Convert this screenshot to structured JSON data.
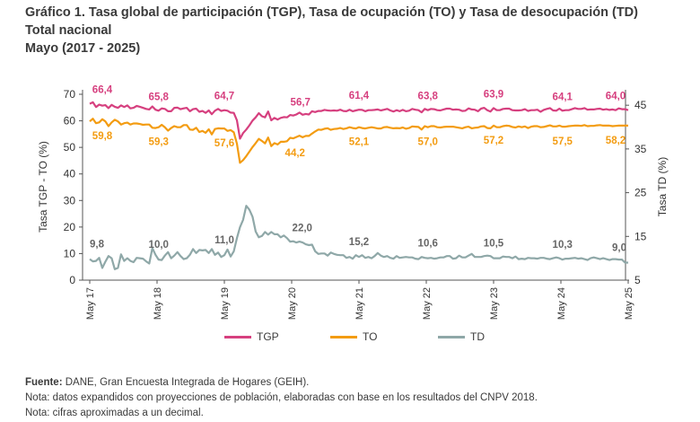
{
  "title": {
    "line1": "Gráfico 1. Tasa global de participación (TGP), Tasa de ocupación (TO) y Tasa de desocupación (TD)",
    "line2": "Total nacional",
    "line3": "Mayo (2017 - 2025)"
  },
  "notes": {
    "source_label": "Fuente:",
    "source_text": " DANE, Gran Encuesta Integrada de Hogares (GEIH).",
    "note1": "Nota: datos expandidos con proyecciones de población, elaboradas con base en los resultados del CNPV 2018.",
    "note2": "Nota: cifras aproximadas a un decimal."
  },
  "colors": {
    "TGP": "#d6407f",
    "TO": "#f39c12",
    "TD": "#8fa8a8"
  },
  "chart_data": {
    "type": "line",
    "x_ticks": [
      "May 17",
      "May 18",
      "May 19",
      "May 20",
      "May 21",
      "May 22",
      "May 23",
      "May 24",
      "May 25"
    ],
    "ylabel": "Tasa TGP - TO (%)",
    "y2label": "Tasa TD (%)",
    "ylim": [
      0,
      70
    ],
    "y_ticks": [
      0,
      10,
      20,
      30,
      40,
      50,
      60,
      70
    ],
    "y2lim": [
      5,
      47.5
    ],
    "y2_ticks": [
      5,
      15,
      25,
      35,
      45
    ],
    "legend_position": "bottom",
    "series": [
      {
        "name": "TGP",
        "axis": "left",
        "values": [
          66.4,
          67.0,
          65.2,
          66.1,
          65.7,
          65.9,
          64.8,
          66.0,
          65.3,
          64.9,
          65.8,
          65.2,
          65.8,
          64.7,
          64.9,
          65.6,
          65.3,
          64.9,
          64.5,
          64.3,
          65.4,
          64.2,
          63.8,
          64.7,
          64.5,
          63.6,
          63.6,
          64.9,
          65.0,
          64.4,
          64.7,
          64.9,
          63.6,
          64.4,
          64.6,
          63.4,
          63.7,
          63.0,
          63.9,
          62.5,
          63.8,
          64.5,
          63.7,
          64.0,
          63.8,
          63.1,
          63.0,
          60.2,
          53.3,
          55.4,
          56.7,
          58.3,
          60.1,
          61.3,
          62.9,
          61.7,
          61.3,
          63.5,
          60.2,
          61.1,
          60.5,
          61.1,
          61.4,
          61.3,
          62.2,
          62.0,
          62.4,
          63.1,
          62.3,
          62.6,
          62.4,
          63.6,
          63.3,
          63.7,
          63.7,
          64.1,
          63.9,
          63.8,
          63.9,
          63.8,
          64.2,
          63.7,
          63.6,
          64.2,
          63.6,
          63.9,
          64.2,
          64.1,
          63.6,
          64.0,
          64.0,
          64.1,
          64.3,
          63.9,
          64.2,
          64.5,
          63.9,
          63.5,
          64.0,
          63.6,
          64.1,
          63.6,
          63.8,
          64.5,
          64.2,
          64.0,
          63.2,
          64.5,
          64.0,
          64.5,
          64.4,
          64.0,
          63.9,
          64.3,
          64.6,
          64.6,
          64.2,
          64.3,
          64.2,
          63.7,
          63.8,
          64.7,
          64.3,
          64.2,
          63.6,
          64.6,
          64.9,
          64.0,
          63.5,
          64.8,
          64.0,
          64.0,
          64.5,
          64.6,
          64.6,
          64.0,
          63.9,
          63.9,
          64.0,
          64.4,
          63.7,
          64.0,
          64.0,
          64.2,
          63.4,
          64.1,
          64.5,
          64.8,
          63.9,
          63.8,
          64.6,
          63.8,
          64.0,
          64.0,
          64.4,
          64.8,
          64.5,
          64.5,
          64.8,
          64.2,
          64.3,
          64.3,
          64.5,
          64.6,
          64.2,
          64.4,
          64.1,
          64.3,
          64.0,
          64.7,
          64.4,
          64.4,
          64.0
        ]
      },
      {
        "name": "TO",
        "axis": "left",
        "values": [
          59.8,
          60.8,
          59.1,
          59.4,
          60.6,
          59.8,
          58.0,
          59.4,
          60.4,
          59.8,
          58.6,
          59.1,
          59.3,
          58.6,
          59.0,
          59.0,
          58.8,
          58.5,
          58.6,
          58.6,
          57.4,
          57.3,
          57.6,
          58.5,
          57.6,
          56.3,
          57.3,
          58.0,
          57.6,
          57.6,
          58.4,
          58.4,
          56.7,
          56.6,
          57.4,
          55.8,
          56.2,
          55.5,
          56.8,
          54.9,
          56.9,
          57.2,
          57.1,
          57.1,
          56.2,
          56.5,
          55.7,
          51.4,
          44.2,
          45.2,
          46.7,
          48.4,
          50.1,
          51.6,
          53.2,
          52.4,
          51.5,
          53.7,
          50.5,
          51.6,
          51.1,
          52.1,
          52.1,
          52.3,
          53.6,
          53.4,
          53.9,
          54.4,
          53.8,
          54.3,
          54.3,
          55.2,
          56.0,
          56.7,
          56.6,
          57.0,
          57.2,
          56.6,
          56.9,
          57.0,
          57.3,
          56.9,
          57.2,
          57.6,
          57.3,
          57.1,
          57.6,
          57.3,
          57.1,
          57.4,
          57.6,
          57.4,
          57.1,
          57.1,
          57.6,
          57.7,
          57.4,
          57.2,
          57.3,
          57.2,
          57.5,
          57.0,
          57.3,
          57.9,
          57.8,
          57.7,
          56.7,
          58.0,
          57.6,
          58.0,
          58.0,
          57.6,
          57.5,
          57.7,
          57.8,
          57.8,
          57.8,
          57.6,
          57.4,
          57.2,
          57.6,
          57.8,
          57.2,
          57.4,
          57.5,
          57.9,
          58.0,
          57.3,
          57.2,
          58.2,
          57.6,
          57.6,
          58.0,
          58.2,
          58.1,
          57.7,
          57.5,
          57.9,
          57.6,
          57.9,
          57.3,
          57.8,
          58.0,
          58.0,
          57.6,
          57.7,
          58.0,
          58.3,
          57.9,
          57.9,
          58.2,
          57.8,
          57.8,
          58.0,
          58.1,
          58.2,
          58.2,
          58.1,
          58.4,
          58.0,
          58.1,
          58.1,
          58.3,
          58.4,
          58.2,
          58.2,
          58.2,
          58.0,
          58.1,
          58.2,
          58.2,
          58.2,
          58.2
        ]
      },
      {
        "name": "TD",
        "axis": "right",
        "values": [
          9.8,
          9.3,
          9.4,
          10.1,
          7.8,
          9.2,
          10.5,
          10.0,
          7.5,
          7.8,
          10.9,
          9.4,
          10.0,
          9.4,
          9.1,
          10.1,
          10.0,
          9.9,
          9.3,
          8.8,
          12.3,
          10.8,
          9.7,
          9.6,
          10.6,
          11.4,
          10.0,
          10.6,
          11.4,
          10.5,
          9.8,
          10.0,
          10.8,
          12.1,
          11.2,
          11.9,
          11.8,
          11.9,
          11.2,
          12.1,
          10.8,
          11.3,
          10.3,
          10.7,
          12.0,
          10.4,
          11.6,
          14.6,
          17.1,
          18.8,
          22.0,
          21.1,
          19.5,
          16.1,
          14.8,
          15.1,
          16.0,
          15.4,
          16.0,
          15.5,
          15.5,
          14.8,
          15.2,
          14.6,
          13.8,
          13.9,
          13.6,
          13.8,
          13.6,
          13.2,
          13.0,
          13.1,
          11.6,
          11.0,
          11.1,
          11.1,
          10.6,
          11.3,
          11.0,
          10.8,
          10.7,
          10.7,
          10.1,
          10.3,
          9.9,
          10.7,
          10.3,
          10.7,
          10.1,
          10.3,
          10.0,
          10.5,
          11.2,
          10.6,
          10.3,
          10.5,
          10.1,
          9.9,
          10.5,
          10.1,
          10.2,
          10.3,
          10.2,
          10.2,
          9.9,
          9.8,
          10.3,
          10.1,
          10.0,
          10.1,
          9.9,
          10.0,
          10.2,
          10.2,
          10.5,
          10.5,
          9.9,
          10.0,
          10.6,
          10.2,
          10.2,
          10.6,
          11.0,
          10.3,
          10.3,
          10.3,
          10.5,
          10.6,
          10.5,
          10.0,
          10.0,
          10.0,
          10.4,
          10.3,
          10.3,
          10.0,
          10.4,
          9.8,
          9.9,
          9.8,
          10.1,
          10.0,
          10.0,
          9.9,
          10.1,
          10.1,
          9.9,
          9.8,
          10.0,
          10.2,
          10.0,
          9.7,
          9.9,
          9.9,
          10.0,
          10.1,
          9.9,
          10.0,
          9.8,
          9.6,
          10.0,
          10.2,
          10.0,
          9.8,
          10.0,
          9.8,
          9.6,
          9.8,
          9.8,
          9.7,
          9.7,
          9.0,
          9.0
        ]
      }
    ],
    "annotations": [
      {
        "series": "TGP",
        "x": "May 17",
        "value": "66,4"
      },
      {
        "series": "TGP",
        "x": "May 18",
        "value": "65,8"
      },
      {
        "series": "TGP",
        "x": "May 19",
        "value": "64,7"
      },
      {
        "series": "TGP",
        "x": "May 20",
        "value": "56,7"
      },
      {
        "series": "TGP",
        "x": "May 21",
        "value": "61,4"
      },
      {
        "series": "TGP",
        "x": "May 22",
        "value": "63,8"
      },
      {
        "series": "TGP",
        "x": "May 23",
        "value": "63,9"
      },
      {
        "series": "TGP",
        "x": "May 24",
        "value": "64,1"
      },
      {
        "series": "TGP",
        "x": "May 25",
        "value": "64,0"
      },
      {
        "series": "TO",
        "x": "May 17",
        "value": "59,8"
      },
      {
        "series": "TO",
        "x": "May 18",
        "value": "59,3"
      },
      {
        "series": "TO",
        "x": "May 19",
        "value": "57,6"
      },
      {
        "series": "TO",
        "x": "May 20",
        "value": "44,2"
      },
      {
        "series": "TO",
        "x": "May 21",
        "value": "52,1"
      },
      {
        "series": "TO",
        "x": "May 22",
        "value": "57,0"
      },
      {
        "series": "TO",
        "x": "May 23",
        "value": "57,2"
      },
      {
        "series": "TO",
        "x": "May 24",
        "value": "57,5"
      },
      {
        "series": "TO",
        "x": "May 25",
        "value": "58,2"
      },
      {
        "series": "TD",
        "x": "May 17",
        "value": "9,8"
      },
      {
        "series": "TD",
        "x": "May 18",
        "value": "10,0"
      },
      {
        "series": "TD",
        "x": "May 19",
        "value": "11,0"
      },
      {
        "series": "TD",
        "x": "May 20",
        "value": "22,0"
      },
      {
        "series": "TD",
        "x": "May 21",
        "value": "15,2"
      },
      {
        "series": "TD",
        "x": "May 22",
        "value": "10,6"
      },
      {
        "series": "TD",
        "x": "May 23",
        "value": "10,5"
      },
      {
        "series": "TD",
        "x": "May 24",
        "value": "10,3"
      },
      {
        "series": "TD",
        "x": "May 25",
        "value": "9,0"
      }
    ]
  }
}
